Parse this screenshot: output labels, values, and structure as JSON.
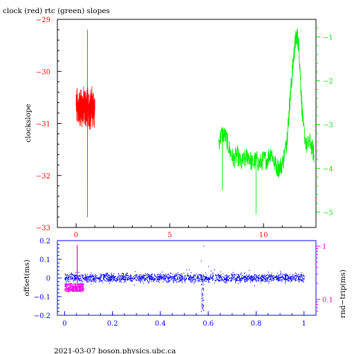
{
  "title": "clock (red) rtc (green) slopes",
  "footer": "2021-03-07 boson.physics.ubc.ca",
  "colors": {
    "red": "#ff0000",
    "green": "#00ee00",
    "blue": "#0000ff",
    "magenta": "#ee00ee",
    "black": "#000000"
  },
  "chart_data": [
    {
      "type": "line",
      "ylabel": "clockslope",
      "xlim": [
        -1,
        12.8
      ],
      "xticks": [
        "0",
        "5",
        "10"
      ],
      "ylim": [
        -33,
        -29
      ],
      "yticks": [
        "−29",
        "−30",
        "−31",
        "−32",
        "−33"
      ],
      "y2lim": [
        -5.35,
        -0.6
      ],
      "y2ticks": [
        "−1",
        "−2",
        "−3",
        "−4",
        "−5"
      ],
      "series": [
        {
          "color": "#ff0000",
          "axis": "left",
          "x_range": [
            0,
            1.0
          ],
          "typical_range": [
            -31.0,
            -30.4
          ],
          "spike_max": -29.2,
          "spike_min": -32.8,
          "spike_x": 0.6
        },
        {
          "color": "#00ee00",
          "axis": "right",
          "points": [
            [
              7.6,
              -3.4
            ],
            [
              7.8,
              -3.2
            ],
            [
              8.0,
              -3.3
            ],
            [
              8.2,
              -3.6
            ],
            [
              8.4,
              -3.8
            ],
            [
              8.6,
              -3.7
            ],
            [
              8.8,
              -3.9
            ],
            [
              9.0,
              -3.8
            ],
            [
              9.2,
              -3.7
            ],
            [
              9.4,
              -3.9
            ],
            [
              9.6,
              -3.8
            ],
            [
              9.8,
              -3.9
            ],
            [
              10.0,
              -3.8
            ],
            [
              10.2,
              -3.8
            ],
            [
              10.4,
              -3.6
            ],
            [
              10.6,
              -3.9
            ],
            [
              10.8,
              -4.0
            ],
            [
              11.0,
              -3.9
            ],
            [
              11.2,
              -3.5
            ],
            [
              11.3,
              -3.1
            ],
            [
              11.4,
              -2.5
            ],
            [
              11.5,
              -2.0
            ],
            [
              11.6,
              -1.5
            ],
            [
              11.7,
              -1.1
            ],
            [
              11.8,
              -0.95
            ],
            [
              11.9,
              -1.3
            ],
            [
              12.0,
              -2.2
            ],
            [
              12.1,
              -3.0
            ],
            [
              12.3,
              -3.5
            ],
            [
              12.5,
              -3.4
            ],
            [
              12.7,
              -3.7
            ]
          ]
        }
      ]
    },
    {
      "type": "scatter",
      "ylabel": "offset(ms)",
      "y2label": "rnd−trip(ms)",
      "xlim": [
        -0.03,
        1.05
      ],
      "xticks": [
        "0",
        "0.2",
        "0.4",
        "0.6",
        "0.8",
        "1"
      ],
      "ylim": [
        -0.2,
        0.2
      ],
      "yticks": [
        "0.2",
        "0.1",
        "0",
        "−0.1",
        "−0.2"
      ],
      "y2scale": "log",
      "y2ticks": [
        "1",
        "0.1"
      ],
      "series": [
        {
          "color": "#0000ff",
          "x_range": [
            0,
            1
          ],
          "typical_range": [
            -0.03,
            0.03
          ],
          "dip_x": 0.575,
          "dip_min": -0.19
        },
        {
          "color": "#ee00ee",
          "axis": "right",
          "x_range": [
            0,
            0.08
          ],
          "typical_range_ms": [
            0.14,
            0.2
          ],
          "spike_max_ms": 1.05
        }
      ]
    }
  ]
}
